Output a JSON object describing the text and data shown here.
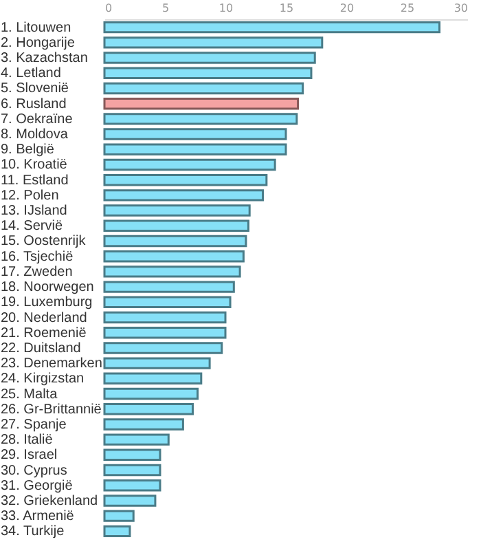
{
  "chart_data": {
    "type": "bar",
    "orientation": "horizontal",
    "categories": [
      "1. Litouwen",
      "2. Hongarije",
      "3. Kazachstan",
      "4. Letland",
      "5. Slovenië",
      "6. Rusland",
      "7. Oekraïne",
      "8. Moldova",
      "9. België",
      "10. Kroatië",
      "11. Estland",
      "12. Polen",
      "13. IJsland",
      "14. Servië",
      "15. Oostenrijk",
      "16. Tsjechië",
      "17. Zweden",
      "18. Noorwegen",
      "19. Luxemburg",
      "20. Nederland",
      "21. Roemenië",
      "22. Duitsland",
      "23. Denemarken",
      "24. Kirgizstan",
      "25. Malta",
      "26. Gr-Brittannië",
      "27. Spanje",
      "28. Italië",
      "29. Israel",
      "30. Cyprus",
      "31. Georgië",
      "32. Griekenland",
      "33. Armenië",
      "34. Turkije"
    ],
    "values": [
      27.7,
      18.0,
      17.4,
      17.1,
      16.4,
      16.0,
      15.9,
      15.0,
      15.0,
      14.1,
      13.4,
      13.1,
      12.0,
      11.9,
      11.7,
      11.5,
      11.2,
      10.7,
      10.4,
      10.0,
      10.0,
      9.7,
      8.7,
      8.0,
      7.7,
      7.3,
      6.5,
      5.3,
      4.6,
      4.6,
      4.6,
      4.2,
      2.4,
      2.1
    ],
    "colors": [
      "#86e0f7",
      "#86e0f7",
      "#86e0f7",
      "#86e0f7",
      "#86e0f7",
      "#f4a3a3",
      "#86e0f7",
      "#86e0f7",
      "#86e0f7",
      "#86e0f7",
      "#86e0f7",
      "#86e0f7",
      "#86e0f7",
      "#86e0f7",
      "#86e0f7",
      "#86e0f7",
      "#86e0f7",
      "#86e0f7",
      "#86e0f7",
      "#86e0f7",
      "#86e0f7",
      "#86e0f7",
      "#86e0f7",
      "#86e0f7",
      "#86e0f7",
      "#86e0f7",
      "#86e0f7",
      "#86e0f7",
      "#86e0f7",
      "#86e0f7",
      "#86e0f7",
      "#86e0f7",
      "#86e0f7",
      "#86e0f7"
    ],
    "xlim": [
      0,
      30
    ],
    "xticks": [
      0,
      5,
      10,
      15,
      20,
      25,
      30
    ],
    "grid": false
  }
}
